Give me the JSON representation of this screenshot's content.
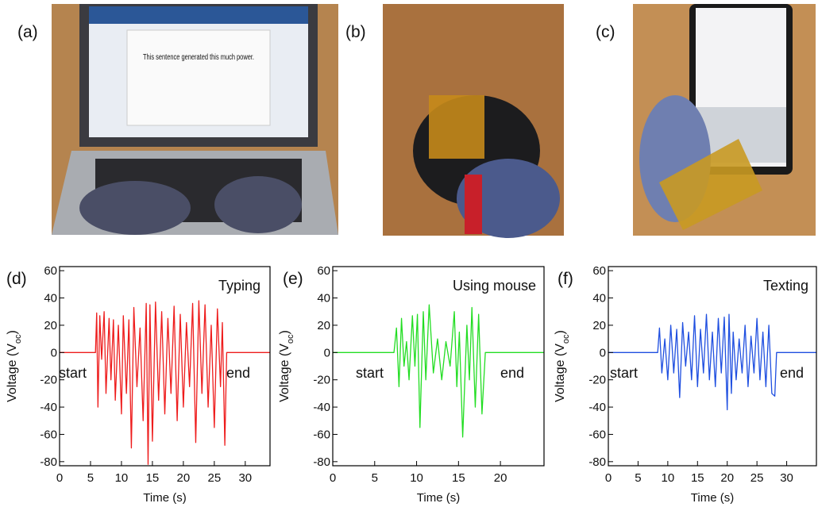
{
  "photos": [
    {
      "label": "(a)",
      "screen_text": "This sentence generated this much power."
    },
    {
      "label": "(b)"
    },
    {
      "label": "(c)"
    }
  ],
  "chart_data": [
    {
      "type": "line",
      "panel_label": "(d)",
      "annotation": "Typing",
      "start_label": "start",
      "end_label": "end",
      "xlabel": "Time (s)",
      "ylabel": {
        "main": "Voltage (V",
        "sub": "oc",
        "close": ")"
      },
      "color": "#ee1c1c",
      "xlim": [
        0,
        34
      ],
      "ylim": [
        -83,
        63
      ],
      "xticks": [
        0,
        5,
        10,
        15,
        20,
        25,
        30
      ],
      "yticks": [
        -80,
        -60,
        -40,
        -20,
        0,
        20,
        40,
        60
      ],
      "x": [
        0,
        5.8,
        6,
        6.2,
        6.5,
        6.8,
        7.2,
        7.5,
        8,
        8.3,
        8.7,
        9,
        9.5,
        10,
        10.3,
        10.8,
        11.2,
        11.6,
        12,
        12.5,
        13,
        13.5,
        14,
        14.3,
        14.6,
        15,
        15.5,
        16,
        16.5,
        17,
        17.5,
        18,
        18.5,
        19,
        19.5,
        20,
        20.5,
        21,
        21.5,
        22,
        22.5,
        23,
        23.5,
        24,
        24.5,
        25,
        25.5,
        26,
        26.3,
        26.7,
        27,
        34
      ],
      "values": [
        0,
        0,
        29,
        -40,
        27,
        -5,
        30,
        -30,
        25,
        -20,
        24,
        -35,
        20,
        -45,
        27,
        -30,
        24,
        -70,
        33,
        -25,
        18,
        -50,
        36,
        -82,
        35,
        -65,
        37,
        -35,
        30,
        -45,
        25,
        -30,
        34,
        -50,
        28,
        -40,
        22,
        -25,
        36,
        -66,
        38,
        -30,
        35,
        -40,
        20,
        -55,
        32,
        -25,
        22,
        -68,
        0,
        0
      ]
    },
    {
      "type": "line",
      "panel_label": "(e)",
      "annotation": "Using mouse",
      "start_label": "start",
      "end_label": "end",
      "xlabel": "Time (s)",
      "ylabel": {
        "main": "Voltage (V",
        "sub": "oc",
        "close": ")"
      },
      "color": "#22dd22",
      "xlim": [
        0,
        25.2
      ],
      "ylim": [
        -83,
        63
      ],
      "xticks": [
        0,
        5,
        10,
        15,
        20
      ],
      "yticks": [
        -80,
        -60,
        -40,
        -20,
        0,
        20,
        40,
        60
      ],
      "x": [
        0,
        7.3,
        7.6,
        7.9,
        8.2,
        8.5,
        8.8,
        9.1,
        9.5,
        9.8,
        10.1,
        10.4,
        10.8,
        11.1,
        11.5,
        12,
        12.5,
        13,
        13.5,
        14,
        14.5,
        14.8,
        15.1,
        15.5,
        16,
        16.3,
        16.6,
        17,
        17.4,
        17.8,
        18.2,
        25.2
      ],
      "values": [
        0,
        0,
        18,
        -25,
        25,
        -10,
        8,
        -20,
        27,
        -10,
        28,
        -55,
        30,
        -20,
        35,
        -15,
        10,
        -20,
        8,
        -10,
        30,
        -25,
        15,
        -62,
        20,
        -20,
        33,
        -40,
        28,
        -45,
        0,
        0
      ]
    },
    {
      "type": "line",
      "panel_label": "(f)",
      "annotation": "Texting",
      "start_label": "start",
      "end_label": "end",
      "xlabel": "Time (s)",
      "ylabel": {
        "main": "Voltage (V",
        "sub": "oc",
        "close": ")"
      },
      "color": "#1f4fe0",
      "xlim": [
        0,
        35
      ],
      "ylim": [
        -83,
        63
      ],
      "xticks": [
        0,
        5,
        10,
        15,
        20,
        25,
        30
      ],
      "yticks": [
        -80,
        -60,
        -40,
        -20,
        0,
        20,
        40,
        60
      ],
      "x": [
        0,
        8.3,
        8.6,
        9,
        9.5,
        10,
        10.5,
        11,
        11.5,
        12,
        12.5,
        13,
        13.5,
        14,
        14.5,
        15,
        15.5,
        16,
        16.5,
        17,
        17.5,
        18,
        18.5,
        19,
        19.5,
        20,
        20.3,
        20.7,
        21,
        21.5,
        22,
        22.5,
        23,
        23.5,
        24,
        24.5,
        25,
        25.5,
        26,
        26.5,
        27,
        27.5,
        28,
        28.3,
        35
      ],
      "values": [
        0,
        0,
        18,
        -15,
        10,
        -20,
        20,
        -15,
        17,
        -33,
        22,
        -10,
        15,
        -20,
        27,
        -25,
        17,
        -15,
        28,
        -20,
        15,
        -25,
        25,
        -15,
        26,
        -42,
        28,
        -30,
        15,
        -20,
        10,
        -15,
        20,
        -25,
        12,
        -15,
        25,
        -20,
        15,
        -25,
        20,
        -30,
        -32,
        0,
        0
      ]
    }
  ]
}
